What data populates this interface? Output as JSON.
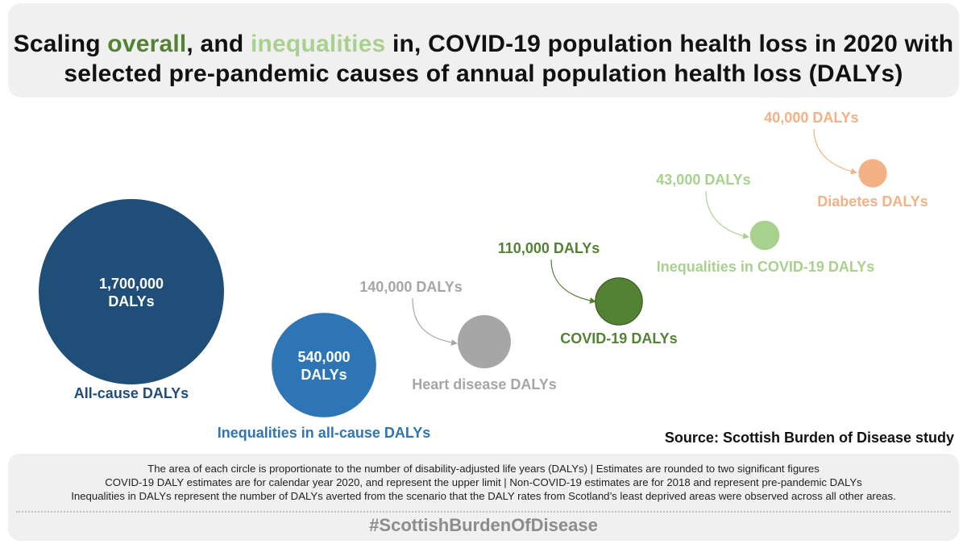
{
  "title": {
    "part1": "Scaling ",
    "highlight1": "overall",
    "part2": ", and ",
    "highlight2": "inequalities",
    "part3": " in, COVID-19 population health loss in 2020 with",
    "line2": "selected pre-pandemic causes of annual population health loss (DALYs)"
  },
  "colors": {
    "all_cause": "#1f4e79",
    "inequalities_all_cause": "#2e75b6",
    "heart_disease": "#a6a6a6",
    "covid": "#548235",
    "inequalities_covid": "#a9d18e",
    "diabetes": "#f4b183"
  },
  "chart_data": {
    "type": "bubble",
    "unit": "DALYs",
    "series": [
      {
        "name": "All-cause DALYs",
        "value": 1700000,
        "value_label": "1,700,000 DALYs",
        "color": "#1f4e79",
        "label_color": "#1f4e79"
      },
      {
        "name": "Inequalities in all-cause DALYs",
        "value": 540000,
        "value_label": "540,000 DALYs",
        "color": "#2e75b6",
        "label_color": "#2e75b6"
      },
      {
        "name": "Heart disease DALYs",
        "value": 140000,
        "value_label": "140,000 DALYs",
        "color": "#a6a6a6",
        "label_color": "#a6a6a6"
      },
      {
        "name": "COVID-19 DALYs",
        "value": 110000,
        "value_label": "110,000 DALYs",
        "color": "#548235",
        "label_color": "#548235"
      },
      {
        "name": "Inequalities in COVID-19 DALYs",
        "value": 43000,
        "value_label": "43,000 DALYs",
        "color": "#a9d18e",
        "label_color": "#a9d18e"
      },
      {
        "name": "Diabetes DALYs",
        "value": 40000,
        "value_label": "40,000 DALYs",
        "color": "#f4b183",
        "label_color": "#f4b183"
      }
    ]
  },
  "source": "Source: Scottish Burden of Disease study",
  "notes": [
    "The area of each circle is proportionate to the number of disability-adjusted life years (DALYs) | Estimates are rounded to two significant figures",
    "COVID-19 DALY estimates are for calendar year 2020, and represent the upper limit | Non-COVID-19 estimates are for 2018 and represent pre-pandemic DALYs",
    "Inequalities in DALYs represent the number of DALYs averted from the scenario that the DALY rates from Scotland’s least deprived areas were observed across all other areas."
  ],
  "hashtag": "#ScottishBurdenOfDisease"
}
